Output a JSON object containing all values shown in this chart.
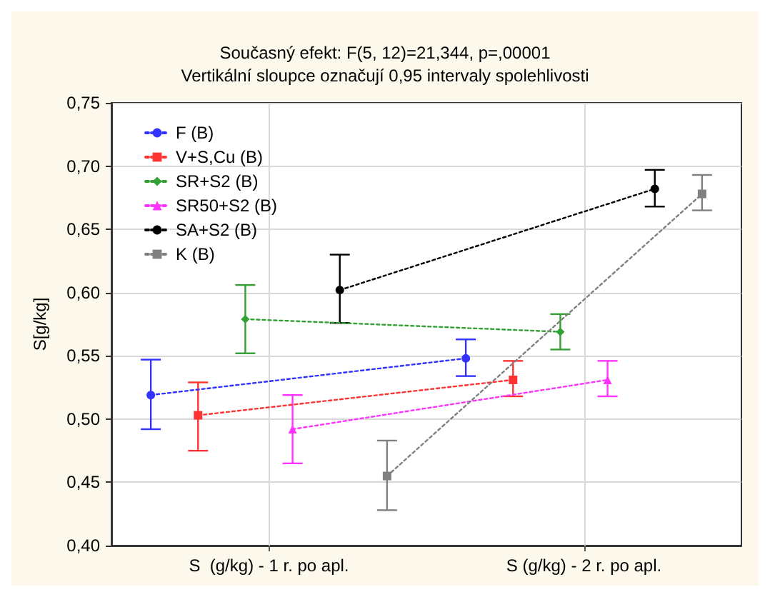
{
  "chart_data": {
    "type": "line",
    "title": "Současný efekt: F(5, 12)=21,344, p=,00001",
    "subtitle": "Vertikální sloupce označují 0,95 intervaly spolehlivosti",
    "ylabel": "S[g/kg]",
    "categories": [
      "S  (g/kg) - 1 r. po apl.",
      "S (g/kg) - 2 r. po apl."
    ],
    "series": [
      {
        "name": "F (B)",
        "color": "#3333ff",
        "marker": "circle",
        "values": [
          0.519,
          0.548
        ],
        "errors": [
          [
            0.492,
            0.547
          ],
          [
            0.534,
            0.563
          ]
        ]
      },
      {
        "name": "V+S,Cu (B)",
        "color": "#ff3333",
        "marker": "square",
        "values": [
          0.503,
          0.531
        ],
        "errors": [
          [
            0.475,
            0.529
          ],
          [
            0.518,
            0.546
          ]
        ]
      },
      {
        "name": "SR+S2 (B)",
        "color": "#33a033",
        "marker": "diamond",
        "values": [
          0.579,
          0.569
        ],
        "errors": [
          [
            0.552,
            0.606
          ],
          [
            0.555,
            0.583
          ]
        ]
      },
      {
        "name": "SR50+S2 (B)",
        "color": "#ff33ff",
        "marker": "triangle",
        "values": [
          0.492,
          0.531
        ],
        "errors": [
          [
            0.465,
            0.519
          ],
          [
            0.518,
            0.546
          ]
        ]
      },
      {
        "name": "SA+S2 (B)",
        "color": "#000000",
        "marker": "circle",
        "values": [
          0.602,
          0.682
        ],
        "errors": [
          [
            0.576,
            0.63
          ],
          [
            0.668,
            0.697
          ]
        ]
      },
      {
        "name": "K (B)",
        "color": "#808080",
        "marker": "square",
        "values": [
          0.455,
          0.678
        ],
        "errors": [
          [
            0.428,
            0.483
          ],
          [
            0.665,
            0.693
          ]
        ]
      }
    ],
    "ylim": [
      0.4,
      0.75
    ],
    "yticks": [
      {
        "value": 0.4,
        "label": "0,40"
      },
      {
        "value": 0.45,
        "label": "0,45"
      },
      {
        "value": 0.5,
        "label": "0,50"
      },
      {
        "value": 0.55,
        "label": "0,55"
      },
      {
        "value": 0.6,
        "label": "0,60"
      },
      {
        "value": 0.65,
        "label": "0,65"
      },
      {
        "value": 0.7,
        "label": "0,70"
      },
      {
        "value": 0.75,
        "label": "0,75"
      }
    ],
    "grid": true,
    "legend": "top left",
    "line_style": "dotted"
  }
}
